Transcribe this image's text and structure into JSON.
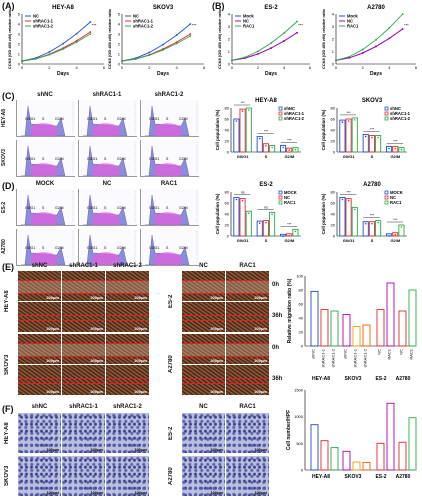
{
  "panels": {
    "A": "(A)",
    "B": "(B)",
    "C": "(C)",
    "D": "(D)",
    "E": "(E)",
    "F": "(F)"
  },
  "prolif": {
    "ylabel": "CCK8 (OD 450 nM) relative ratio",
    "xlabel": "Days",
    "charts": [
      {
        "title": "HEY-A8",
        "legend": [
          "NC",
          "shRAC1-1",
          "shRAC1-2"
        ]
      },
      {
        "title": "SKOV3",
        "legend": [
          "NC",
          "shRAC1-1",
          "shRAC1-2"
        ]
      },
      {
        "title": "ES-2",
        "legend": [
          "Mock",
          "NC",
          "RAC1"
        ]
      },
      {
        "title": "A2780",
        "legend": [
          "Mock",
          "NC",
          "RAC1"
        ]
      }
    ],
    "xticks": [
      "0",
      "2",
      "4",
      "6"
    ],
    "yticks_A": [
      "0",
      "1",
      "2",
      "3",
      "4",
      "5"
    ],
    "yticks_B": [
      "0",
      "1",
      "2",
      "3",
      "4"
    ],
    "sig": "***"
  },
  "cycle_imgs": {
    "cols_C": [
      "shNC",
      "shRAC1-1",
      "shRAC1-2"
    ],
    "rows_C": [
      "HEY-A8",
      "SKOV3"
    ],
    "cols_D": [
      "MOCK",
      "NC",
      "RAC1"
    ],
    "rows_D": [
      "ES-2",
      "A2780"
    ],
    "phases": [
      "G0/G1",
      "S",
      "G2/M"
    ]
  },
  "cycle_bars": {
    "ylabel": "Cell population (%)",
    "yticks": [
      "0",
      "20",
      "40",
      "60",
      "80"
    ],
    "groups": [
      "G0/G1",
      "S",
      "G2/M"
    ],
    "charts": [
      {
        "title": "HEY-A8",
        "legend": [
          "shNC",
          "shRAC1-1",
          "shRAC1-2"
        ],
        "values": [
          [
            60,
            78,
            80
          ],
          [
            28,
            15,
            12
          ],
          [
            12,
            7,
            8
          ]
        ]
      },
      {
        "title": "SKOV3",
        "legend": [
          "shNC",
          "shRAC1-1",
          "shRAC1-2"
        ],
        "values": [
          [
            58,
            60,
            62
          ],
          [
            32,
            30,
            30
          ],
          [
            10,
            10,
            8
          ]
        ]
      },
      {
        "title": "ES-2",
        "legend": [
          "MOCK",
          "NC",
          "RAC1"
        ],
        "values": [
          [
            70,
            68,
            45
          ],
          [
            27,
            28,
            43
          ],
          [
            3,
            4,
            12
          ]
        ]
      },
      {
        "title": "A2780",
        "legend": [
          "MOCK",
          "NC",
          "RAC1"
        ],
        "values": [
          [
            70,
            68,
            52
          ],
          [
            26,
            26,
            28
          ],
          [
            4,
            6,
            20
          ]
        ]
      }
    ],
    "sig_labels": [
      "***",
      "***",
      "***",
      "***",
      "***",
      "***",
      "ns",
      "ns",
      "***",
      "***",
      "***",
      "***",
      "***",
      "***"
    ]
  },
  "migration": {
    "cols_left": [
      "shNC",
      "shRAC1-1",
      "shRAC1-2"
    ],
    "cols_right": [
      "NC",
      "RAC1"
    ],
    "rows": [
      "HEY-A8",
      "SKOV3"
    ],
    "rows_right": [
      "ES-2",
      "A2780"
    ],
    "times": [
      "0h",
      "36h",
      "0h",
      "36h"
    ],
    "scale": "200μm",
    "ylabel": "Relative migration ratio (%)",
    "yticks": [
      "0",
      "20",
      "40",
      "60",
      "80",
      "100"
    ],
    "xgroups": [
      "HEY-A8",
      "SKOV3",
      "ES-2",
      "A2780"
    ],
    "xcats": [
      "shNC",
      "shRAC1-1",
      "shRAC1-2",
      "shNC",
      "shRAC1-1",
      "shRAC1-2",
      "NC",
      "RAC1",
      "NC",
      "RAC1"
    ],
    "values": [
      78,
      52,
      50,
      45,
      28,
      30,
      52,
      90,
      50,
      80
    ]
  },
  "invasion": {
    "cols_left": [
      "shNC",
      "shRAC1-1",
      "shRAC1-2"
    ],
    "cols_right": [
      "NC",
      "RAC1"
    ],
    "rows": [
      "HEY-A8",
      "SKOV3"
    ],
    "rows_right": [
      "ES-2",
      "A2780"
    ],
    "scale": "100μm",
    "ylabel": "Cell number/HPF",
    "yticks": [
      "0",
      "500",
      "1000",
      "1500"
    ],
    "xgroups": [
      "HEY-A8",
      "SKOV3",
      "ES-2",
      "A2780"
    ],
    "values": [
      850,
      550,
      420,
      350,
      150,
      140,
      500,
      1250,
      520,
      980
    ]
  },
  "colors": {
    "c1": "#1b4fd1",
    "c2": "#e8272b",
    "c3": "#2aa84a",
    "c4": "#b400b4",
    "hist": "#8c8cd8",
    "histPink": "#e060e0"
  }
}
